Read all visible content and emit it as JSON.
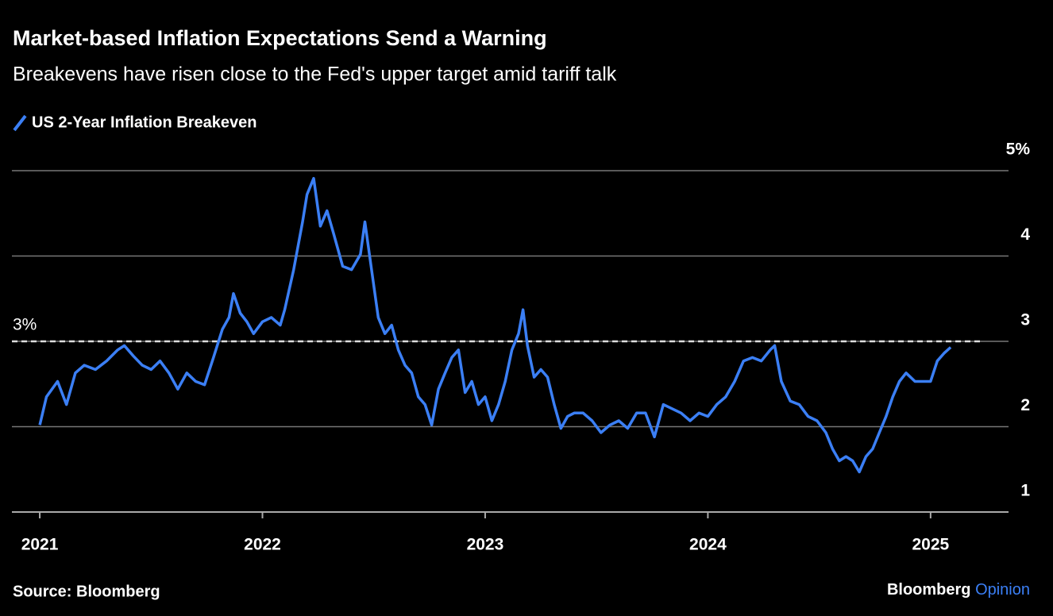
{
  "chart_data": {
    "type": "line",
    "title": "Market-based Inflation Expectations Send a Warning",
    "subtitle": "Breakevens have risen close to the Fed's upper target amid tariff talk",
    "source": "Source: Bloomberg",
    "branding": [
      "Bloomberg",
      "Opinion"
    ],
    "x": [
      2021.0,
      2021.03,
      2021.08,
      2021.12,
      2021.16,
      2021.2,
      2021.25,
      2021.3,
      2021.35,
      2021.38,
      2021.42,
      2021.46,
      2021.5,
      2021.54,
      2021.58,
      2021.62,
      2021.66,
      2021.7,
      2021.74,
      2021.78,
      2021.82,
      2021.85,
      2021.87,
      2021.9,
      2021.93,
      2021.96,
      2022.0,
      2022.04,
      2022.08,
      2022.1,
      2022.14,
      2022.18,
      2022.2,
      2022.23,
      2022.26,
      2022.29,
      2022.32,
      2022.36,
      2022.4,
      2022.44,
      2022.46,
      2022.49,
      2022.52,
      2022.55,
      2022.58,
      2022.61,
      2022.64,
      2022.67,
      2022.7,
      2022.73,
      2022.76,
      2022.79,
      2022.82,
      2022.85,
      2022.88,
      2022.91,
      2022.94,
      2022.97,
      2023.0,
      2023.03,
      2023.06,
      2023.09,
      2023.12,
      2023.15,
      2023.17,
      2023.19,
      2023.22,
      2023.25,
      2023.28,
      2023.31,
      2023.34,
      2023.37,
      2023.4,
      2023.44,
      2023.48,
      2023.52,
      2023.56,
      2023.6,
      2023.64,
      2023.68,
      2023.72,
      2023.76,
      2023.8,
      2023.84,
      2023.88,
      2023.92,
      2023.96,
      2024.0,
      2024.04,
      2024.08,
      2024.12,
      2024.16,
      2024.2,
      2024.24,
      2024.28,
      2024.3,
      2024.33,
      2024.37,
      2024.41,
      2024.45,
      2024.49,
      2024.53,
      2024.56,
      2024.59,
      2024.62,
      2024.65,
      2024.68,
      2024.71,
      2024.74,
      2024.77,
      2024.8,
      2024.83,
      2024.86,
      2024.89,
      2024.93,
      2024.96,
      2025.0,
      2025.03,
      2025.06,
      2025.09
    ],
    "series": [
      {
        "name": "US 2-Year Inflation Breakeven",
        "color": "#3b7ff5",
        "values": [
          2.02,
          2.35,
          2.53,
          2.26,
          2.63,
          2.72,
          2.67,
          2.77,
          2.9,
          2.95,
          2.83,
          2.72,
          2.67,
          2.77,
          2.63,
          2.44,
          2.63,
          2.53,
          2.49,
          2.81,
          3.14,
          3.28,
          3.56,
          3.33,
          3.23,
          3.09,
          3.23,
          3.28,
          3.19,
          3.37,
          3.84,
          4.4,
          4.72,
          4.91,
          4.35,
          4.53,
          4.26,
          3.88,
          3.84,
          4.02,
          4.4,
          3.84,
          3.28,
          3.09,
          3.19,
          2.9,
          2.72,
          2.63,
          2.35,
          2.26,
          2.02,
          2.44,
          2.63,
          2.81,
          2.9,
          2.4,
          2.53,
          2.26,
          2.35,
          2.07,
          2.26,
          2.53,
          2.9,
          3.09,
          3.37,
          2.95,
          2.58,
          2.67,
          2.58,
          2.26,
          1.98,
          2.12,
          2.16,
          2.16,
          2.07,
          1.93,
          2.02,
          2.07,
          1.98,
          2.16,
          2.16,
          1.88,
          2.26,
          2.21,
          2.16,
          2.07,
          2.16,
          2.12,
          2.26,
          2.35,
          2.53,
          2.77,
          2.81,
          2.77,
          2.9,
          2.95,
          2.53,
          2.3,
          2.26,
          2.12,
          2.07,
          1.93,
          1.74,
          1.6,
          1.65,
          1.6,
          1.47,
          1.65,
          1.74,
          1.93,
          2.12,
          2.35,
          2.53,
          2.63,
          2.53,
          2.53,
          2.53,
          2.77,
          2.86,
          2.93
        ]
      }
    ],
    "xlim": [
      2020.875,
      2025.35
    ],
    "xticks": [
      2021,
      2022,
      2023,
      2024,
      2025
    ],
    "ylim": [
      1,
      5
    ],
    "yticks": [
      1,
      2,
      3,
      4,
      {
        "value": 5,
        "label": "5%"
      }
    ],
    "reference_line": {
      "value": 3,
      "label": "3%"
    },
    "grid": true,
    "legend": "top-left"
  }
}
